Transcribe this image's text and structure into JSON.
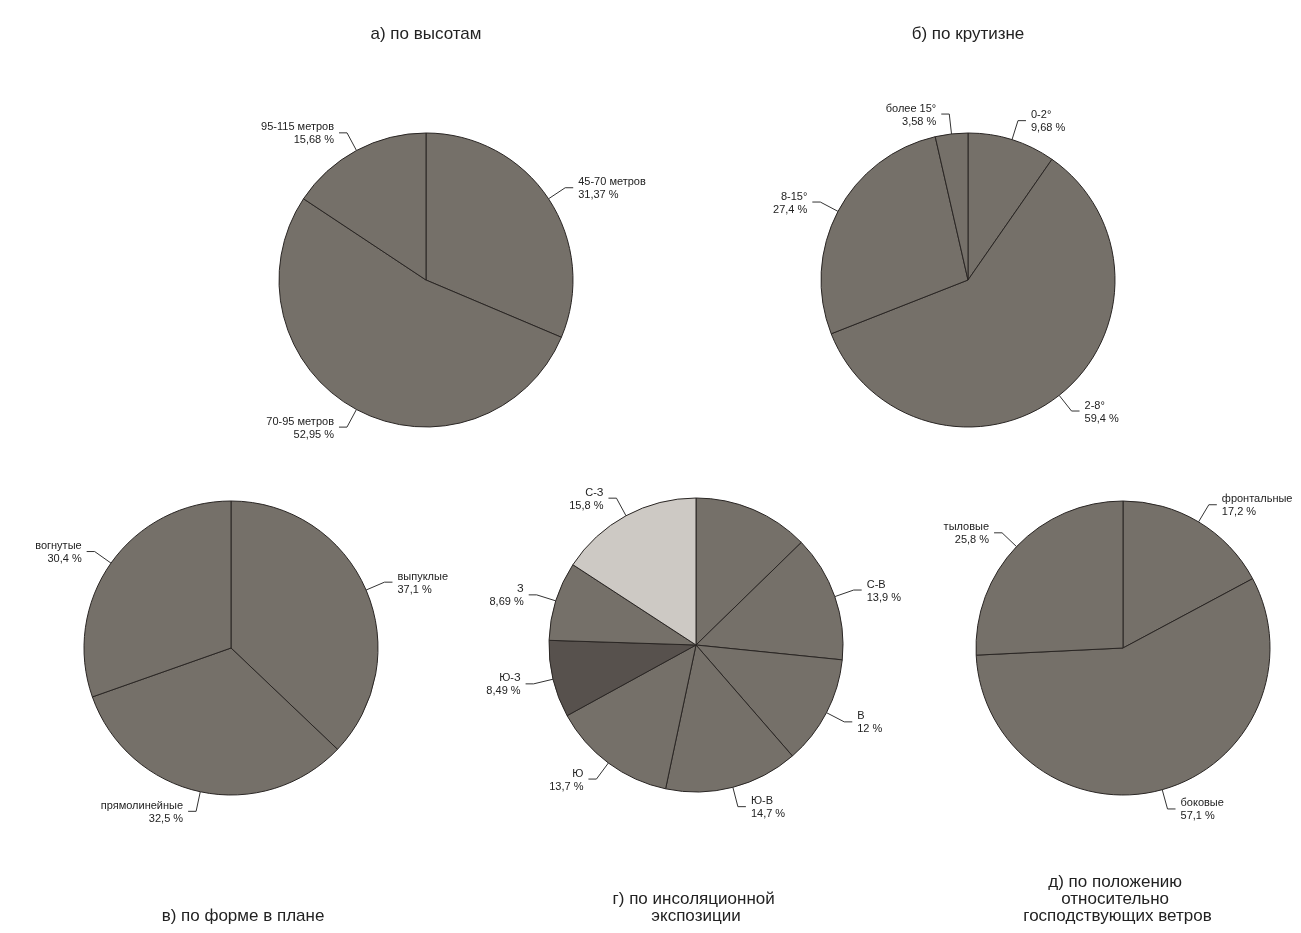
{
  "chart_data": [
    {
      "type": "pie",
      "title": "а) по высотам",
      "categories": [
        "45-70 метров",
        "70-95 метров",
        "95-115 метров"
      ],
      "values": [
        31.37,
        52.95,
        15.68
      ],
      "value_labels": [
        "31,37 %",
        "52,95 %",
        "15,68 %"
      ],
      "colors": [
        "#757069",
        "#757069",
        "#757069"
      ]
    },
    {
      "type": "pie",
      "title": "б) по крутизне",
      "categories": [
        "0-2°",
        "2-8°",
        "8-15°",
        "более 15°"
      ],
      "values": [
        9.68,
        59.4,
        27.4,
        3.58
      ],
      "value_labels": [
        "9,68 %",
        "59,4 %",
        "27,4 %",
        "3,58 %"
      ],
      "colors": [
        "#757069",
        "#757069",
        "#757069",
        "#757069"
      ]
    },
    {
      "type": "pie",
      "title": "в) по форме в плане",
      "categories": [
        "выпуклые",
        "прямолинейные",
        "вогнутые"
      ],
      "values": [
        37.1,
        32.5,
        30.4
      ],
      "value_labels": [
        "37,1 %",
        "32,5 %",
        "30,4 %"
      ],
      "colors": [
        "#757069",
        "#757069",
        "#757069"
      ]
    },
    {
      "type": "pie",
      "title": "г) по инсоляционной экспозиции",
      "categories": [
        null,
        "С-В",
        "В",
        "Ю-В",
        "Ю",
        "Ю-З",
        "З",
        "С-З"
      ],
      "values": [
        12.71,
        13.9,
        12,
        14.7,
        13.7,
        8.49,
        8.69,
        15.8
      ],
      "value_labels": [
        null,
        "13,9 %",
        "12 %",
        "14,7 %",
        "13,7 %",
        "8,49 %",
        "8,69 %",
        "15,8 %"
      ],
      "colors": [
        "#757069",
        "#757069",
        "#757069",
        "#757069",
        "#757069",
        "#57514d",
        "#757069",
        "#cdc9c4"
      ]
    },
    {
      "type": "pie",
      "title": "д) по положению относительно господствующих ветров",
      "categories": [
        "фронтальные",
        "боковые",
        "тыловые"
      ],
      "values": [
        17.2,
        57.1,
        25.8
      ],
      "value_labels": [
        "17,2 %",
        "57,1 %",
        "25,8 %"
      ],
      "colors": [
        "#757069",
        "#757069",
        "#757069"
      ]
    }
  ]
}
